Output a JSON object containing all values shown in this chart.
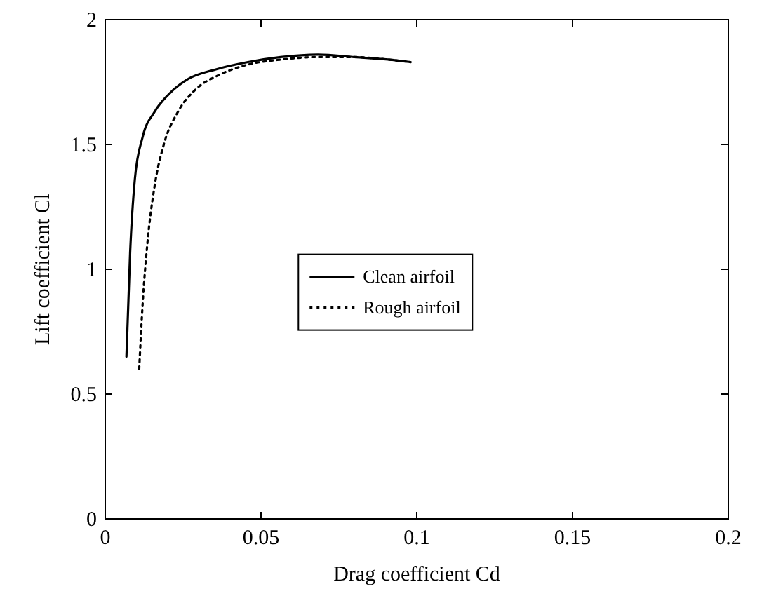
{
  "chart_data": {
    "type": "line",
    "xlabel": "Drag coefficient Cd",
    "ylabel": "Lift coefficient Cl",
    "xlim": [
      0,
      0.2
    ],
    "xticks": [
      0,
      0.05,
      0.1,
      0.15,
      0.2
    ],
    "ylim": [
      0,
      2
    ],
    "yticks": [
      0,
      0.5,
      1,
      1.5,
      2
    ],
    "grid": false,
    "legend": "center",
    "marker": "none",
    "series": [
      {
        "name": "Clean airfoil",
        "color": "#000000",
        "line_style": "solid",
        "x": [
          0.0068,
          0.008,
          0.0095,
          0.012,
          0.0158,
          0.0203,
          0.0263,
          0.0353,
          0.0458,
          0.0563,
          0.0683,
          0.08,
          0.0908,
          0.098
        ],
        "values": [
          0.65,
          1.07,
          1.36,
          1.53,
          1.63,
          1.7,
          1.76,
          1.8,
          1.83,
          1.85,
          1.86,
          1.85,
          1.84,
          1.83
        ]
      },
      {
        "name": "Rough airfoil",
        "color": "#000000",
        "line_style": "dotted",
        "x": [
          0.0109,
          0.012,
          0.0135,
          0.0158,
          0.0188,
          0.0233,
          0.029,
          0.0368,
          0.0458,
          0.0563,
          0.0683,
          0.08,
          0.0908,
          0.098
        ],
        "values": [
          0.6,
          0.86,
          1.1,
          1.33,
          1.5,
          1.63,
          1.72,
          1.78,
          1.82,
          1.84,
          1.85,
          1.85,
          1.84,
          1.83
        ]
      }
    ]
  }
}
